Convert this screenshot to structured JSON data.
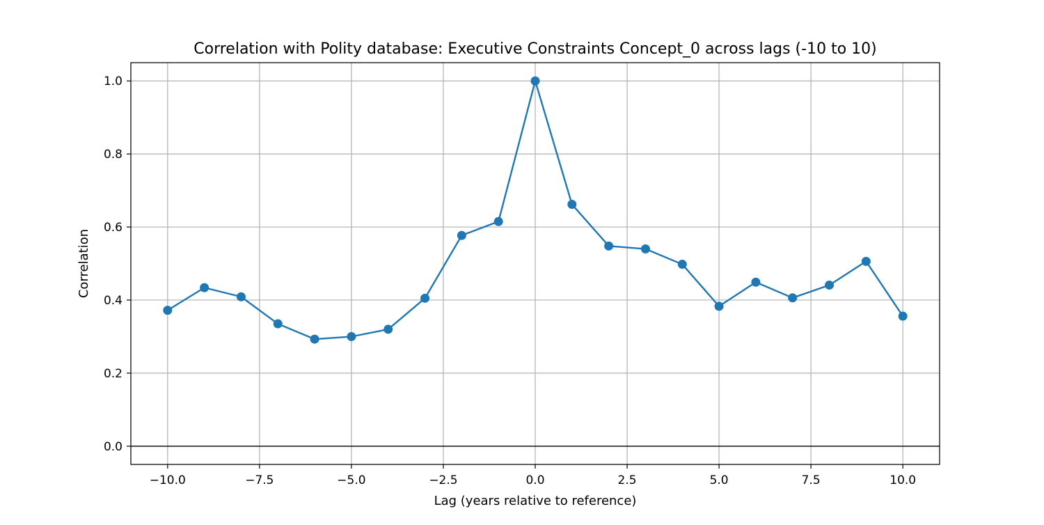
{
  "chart_data": {
    "type": "line",
    "title": "Correlation with Polity database: Executive Constraints Concept_0 across lags (-10 to 10)",
    "xlabel": "Lag (years relative to reference)",
    "ylabel": "Correlation",
    "xlim": [
      -11,
      11
    ],
    "ylim": [
      -0.05,
      1.05
    ],
    "x_ticks": [
      -10.0,
      -7.5,
      -5.0,
      -2.5,
      0.0,
      2.5,
      5.0,
      7.5,
      10.0
    ],
    "x_tick_labels": [
      "−10.0",
      "−7.5",
      "−5.0",
      "−2.5",
      "0.0",
      "2.5",
      "5.0",
      "7.5",
      "10.0"
    ],
    "y_ticks": [
      0.0,
      0.2,
      0.4,
      0.6,
      0.8,
      1.0
    ],
    "y_tick_labels": [
      "0.0",
      "0.2",
      "0.4",
      "0.6",
      "0.8",
      "1.0"
    ],
    "grid": true,
    "reference_line_y": 0.0,
    "series": [
      {
        "color": "#1f77b4",
        "marker": "circle",
        "x": [
          -10,
          -9,
          -8,
          -7,
          -6,
          -5,
          -4,
          -3,
          -2,
          -1,
          0,
          1,
          2,
          3,
          4,
          5,
          6,
          7,
          8,
          9,
          10
        ],
        "y": [
          0.372,
          0.434,
          0.409,
          0.335,
          0.293,
          0.3,
          0.32,
          0.405,
          0.577,
          0.615,
          1.0,
          0.662,
          0.548,
          0.54,
          0.498,
          0.383,
          0.449,
          0.406,
          0.441,
          0.506,
          0.356
        ]
      }
    ]
  }
}
